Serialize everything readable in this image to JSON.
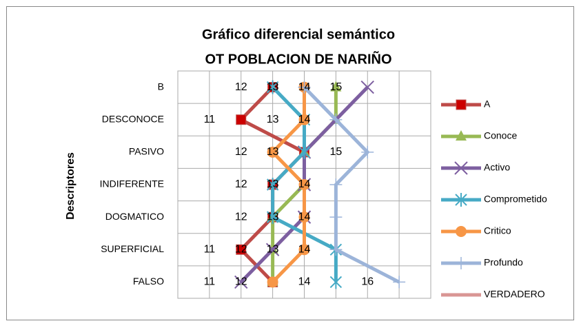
{
  "chart_data": {
    "type": "line",
    "orientation": "horizontal",
    "title": [
      "Gráfico diferencial semántico",
      "OT POBLACION DE NARIÑO"
    ],
    "y_label": "Descriptores",
    "categories": [
      "B",
      "DESCONOCE",
      "PASIVO",
      "INDIFERENTE",
      "DOGMATICO",
      "SUPERFICIAL",
      "FALSO"
    ],
    "xlim": [
      10,
      18
    ],
    "xticks": [
      10,
      11,
      12,
      13,
      14,
      15,
      16,
      17,
      18
    ],
    "grid": true,
    "legend": "right",
    "series": [
      {
        "name": "A",
        "color": "#be4b48",
        "marker": "square",
        "values": [
          13,
          12,
          14,
          13,
          13,
          12,
          13
        ]
      },
      {
        "name": "Conoce",
        "color": "#98b954",
        "marker": "triangle",
        "values": [
          15,
          15,
          14,
          14,
          13,
          13,
          13
        ]
      },
      {
        "name": "Activo",
        "color": "#7d5fa0",
        "marker": "x",
        "values": [
          16,
          15,
          14,
          14,
          14,
          13,
          12
        ]
      },
      {
        "name": "Comprometido",
        "color": "#46aac5",
        "marker": "star",
        "values": [
          13,
          14,
          14,
          13,
          13,
          15,
          15
        ]
      },
      {
        "name": "Critico",
        "color": "#f79646",
        "marker": "circle",
        "values": [
          14,
          14,
          13,
          14,
          14,
          14,
          13
        ]
      },
      {
        "name": "Profundo",
        "color": "#9cb4d9",
        "marker": "plus",
        "values": [
          14,
          15,
          16,
          15,
          15,
          15,
          17
        ]
      },
      {
        "name": "VERDADERO",
        "color": "#d99694",
        "marker": "none",
        "values": [
          null,
          null,
          null,
          null,
          null,
          null,
          null
        ]
      }
    ],
    "row_labels": [
      [
        12,
        13,
        14,
        15
      ],
      [
        11,
        13,
        14
      ],
      [
        12,
        13,
        15
      ],
      [
        12,
        13,
        14
      ],
      [
        12,
        13,
        14
      ],
      [
        11,
        12,
        13,
        14
      ],
      [
        11,
        12,
        14,
        16
      ]
    ]
  }
}
